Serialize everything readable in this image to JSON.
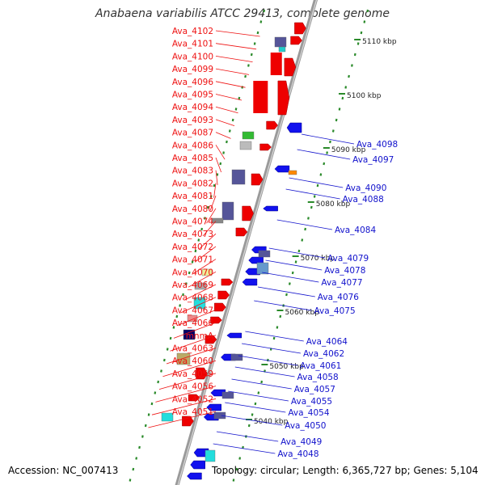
{
  "title": "Anabaena variabilis ATCC 29413, complete genome",
  "accession": "Accession: NC_007413",
  "topology": "Topology: circular; Length: 6,365,727 bp; Genes: 5,104",
  "colors": {
    "left_label": "#ee1111",
    "right_label": "#1111cc",
    "backbone": "#9a9a9a",
    "tick": "#2a8a2a",
    "forward_gene": "#ee0000",
    "reverse_gene": "#1111ee"
  },
  "scale_labels": [
    "5110 kbp",
    "5100 kbp",
    "5090 kbp",
    "5080 kbp",
    "5070 kbp",
    "5060 kbp",
    "5050 kbp",
    "5040 kbp"
  ],
  "left_genes": [
    "Ava_4102",
    "Ava_4101",
    "Ava_4100",
    "Ava_4099",
    "Ava_4096",
    "Ava_4095",
    "Ava_4094",
    "Ava_4093",
    "Ava_4087",
    "Ava_4086",
    "Ava_4085",
    "Ava_4083",
    "Ava_4082",
    "Ava_4081",
    "Ava_4080",
    "Ava_4074",
    "Ava_4073",
    "Ava_4072",
    "Ava_4071",
    "Ava_4070",
    "Ava_4069",
    "Ava_4068",
    "Ava_4067",
    "Ava_4066",
    "mnmA",
    "Ava_4063",
    "Ava_4060",
    "Ava_4059",
    "Ava_4056",
    "Ava_4052",
    "Ava_4051"
  ],
  "right_genes": [
    "Ava_4098",
    "Ava_4097",
    "Ava_4090",
    "Ava_4088",
    "Ava_4084",
    "Ava_4079",
    "Ava_4078",
    "Ava_4077",
    "Ava_4076",
    "Ava_4075",
    "Ava_4064",
    "Ava_4062",
    "Ava_4061",
    "Ava_4058",
    "Ava_4057",
    "Ava_4055",
    "Ava_4054",
    "Ava_4050",
    "Ava_4049",
    "Ava_4048"
  ]
}
